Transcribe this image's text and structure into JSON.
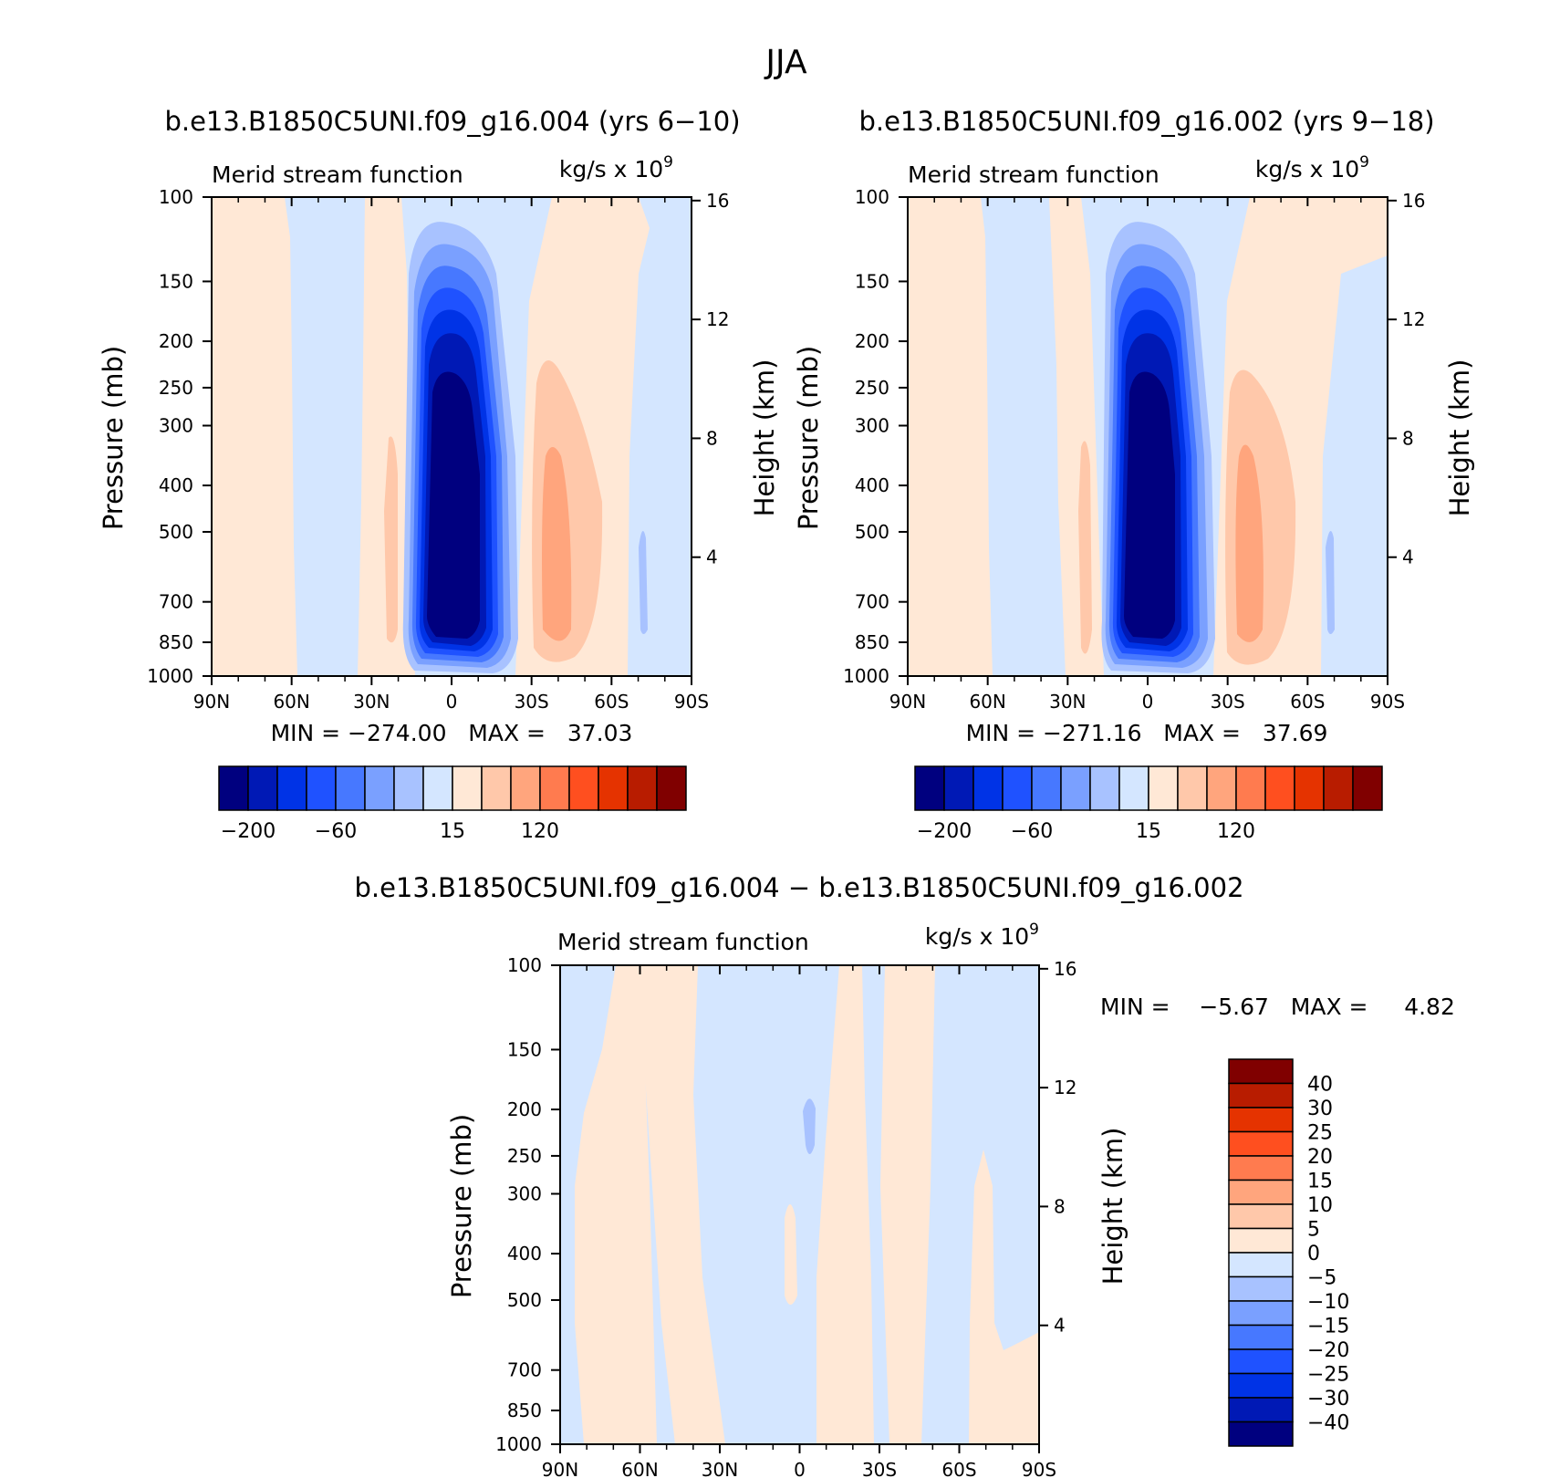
{
  "figure_title": "JJA",
  "panels": [
    {
      "title": "b.e13.B1850C5UNI.f09_g16.004 (yrs 6−10)",
      "left_label": "Merid stream function",
      "right_label": "kg/s x 10",
      "right_label_exp": "9",
      "ylabel_left": "Pressure (mb)",
      "ylabel_right": "Height (km)",
      "stats_text": "MIN = −274.00   MAX =   37.03"
    },
    {
      "title": "b.e13.B1850C5UNI.f09_g16.002 (yrs 9−18)",
      "left_label": "Merid stream function",
      "right_label": "kg/s x 10",
      "right_label_exp": "9",
      "ylabel_left": "Pressure (mb)",
      "ylabel_right": "Height (km)",
      "stats_text": "MIN = −271.16   MAX =   37.69"
    },
    {
      "title": "b.e13.B1850C5UNI.f09_g16.004 − b.e13.B1850C5UNI.f09_g16.002",
      "left_label": "Merid stream function",
      "right_label": "kg/s x 10",
      "right_label_exp": "9",
      "ylabel_left": "Pressure (mb)",
      "ylabel_right": "Height (km)",
      "stats_text": "MIN =    −5.67   MAX =     4.82"
    }
  ],
  "chart_data": [
    {
      "type": "heatmap",
      "title": "b.e13.B1850C5UNI.f09_g16.004 (yrs 6−10)",
      "xlabel": "",
      "ylabel": "Pressure (mb)",
      "y2label": "Height (km)",
      "x_ticks": [
        "90N",
        "60N",
        "30N",
        "0",
        "30S",
        "60S",
        "90S"
      ],
      "x_range": [
        90,
        -90
      ],
      "y_ticks": [
        100,
        150,
        200,
        250,
        300,
        400,
        500,
        700,
        850,
        1000
      ],
      "y_range": [
        100,
        1000
      ],
      "y_scale": "log",
      "y2_ticks": [
        16,
        12,
        8,
        4
      ],
      "units": "kg/s x 10^9",
      "min": -274.0,
      "max": 37.03,
      "legend_position": "bottom",
      "colorbar_labels": [
        "−200",
        "−60",
        "15",
        "120"
      ],
      "features": [
        {
          "sign": "negative",
          "lat": 0,
          "p_top": 120,
          "min": -274.0
        },
        {
          "sign": "positive",
          "lat": -40,
          "p_top": 250,
          "max": 37.03
        },
        {
          "sign": "positive",
          "lat": 25,
          "p_top": 320
        },
        {
          "sign": "negative",
          "lat": 50,
          "p_top": 100
        }
      ]
    },
    {
      "type": "heatmap",
      "title": "b.e13.B1850C5UNI.f09_g16.002 (yrs 9−18)",
      "xlabel": "",
      "ylabel": "Pressure (mb)",
      "y2label": "Height (km)",
      "x_ticks": [
        "90N",
        "60N",
        "30N",
        "0",
        "30S",
        "60S",
        "90S"
      ],
      "x_range": [
        90,
        -90
      ],
      "y_ticks": [
        100,
        150,
        200,
        250,
        300,
        400,
        500,
        700,
        850,
        1000
      ],
      "y_range": [
        100,
        1000
      ],
      "y_scale": "log",
      "y2_ticks": [
        16,
        12,
        8,
        4
      ],
      "units": "kg/s x 10^9",
      "min": -271.16,
      "max": 37.69,
      "legend_position": "bottom",
      "colorbar_labels": [
        "−200",
        "−60",
        "15",
        "120"
      ],
      "features": [
        {
          "sign": "negative",
          "lat": 0,
          "p_top": 120,
          "min": -271.16
        },
        {
          "sign": "positive",
          "lat": -40,
          "p_top": 250,
          "max": 37.69
        },
        {
          "sign": "positive",
          "lat": 25,
          "p_top": 320
        },
        {
          "sign": "negative",
          "lat": 50,
          "p_top": 100
        }
      ]
    },
    {
      "type": "heatmap",
      "title": "b.e13.B1850C5UNI.f09_g16.004 − b.e13.B1850C5UNI.f09_g16.002",
      "xlabel": "",
      "ylabel": "Pressure (mb)",
      "y2label": "Height (km)",
      "x_ticks": [
        "90N",
        "60N",
        "30N",
        "0",
        "30S",
        "60S",
        "90S"
      ],
      "x_range": [
        90,
        -90
      ],
      "y_ticks": [
        100,
        150,
        200,
        250,
        300,
        400,
        500,
        700,
        850,
        1000
      ],
      "y_range": [
        100,
        1000
      ],
      "y_scale": "log",
      "y2_ticks": [
        16,
        12,
        8,
        4
      ],
      "units": "kg/s x 10^9",
      "min": -5.67,
      "max": 4.82,
      "legend_position": "right",
      "colorbar_labels": [
        "40",
        "30",
        "25",
        "20",
        "15",
        "10",
        "5",
        "0",
        "−5",
        "−10",
        "−15",
        "−20",
        "−25",
        "−30",
        "−40"
      ],
      "features": [
        {
          "sign": "positive",
          "lat": 62,
          "p_top": 100
        },
        {
          "sign": "positive",
          "lat": 38,
          "p_top": 450
        },
        {
          "sign": "positive",
          "lat": -15,
          "p_top": 100
        },
        {
          "sign": "positive",
          "lat": -38,
          "p_top": 100
        },
        {
          "sign": "positive",
          "lat": 3,
          "p_top": 300
        },
        {
          "sign": "positive",
          "lat": -70,
          "p_top": 260
        },
        {
          "sign": "negative",
          "lat": -1,
          "p_top": 190
        }
      ]
    }
  ],
  "colors": {
    "diverging_16": [
      "#00007f",
      "#0019b5",
      "#0033e6",
      "#1f52ff",
      "#4778ff",
      "#7aa0ff",
      "#a8c2ff",
      "#d4e6ff",
      "#ffe8d6",
      "#ffc8aa",
      "#ffa57d",
      "#ff7b4f",
      "#ff4f1f",
      "#e53300",
      "#b81c00",
      "#800000"
    ]
  }
}
